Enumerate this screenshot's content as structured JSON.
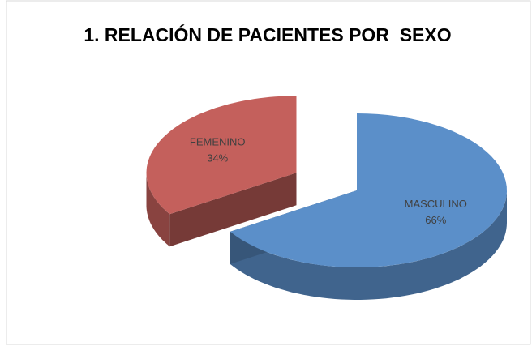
{
  "chart_data": {
    "type": "pie",
    "title": "1. RELACIÓN DE PACIENTES POR  SEXO",
    "categories": [
      "MASCULINO",
      "FEMENINO"
    ],
    "values": [
      66,
      34
    ],
    "value_labels": [
      "66%",
      "34%"
    ],
    "colors": [
      "#5b8fc9",
      "#c4605c"
    ]
  }
}
